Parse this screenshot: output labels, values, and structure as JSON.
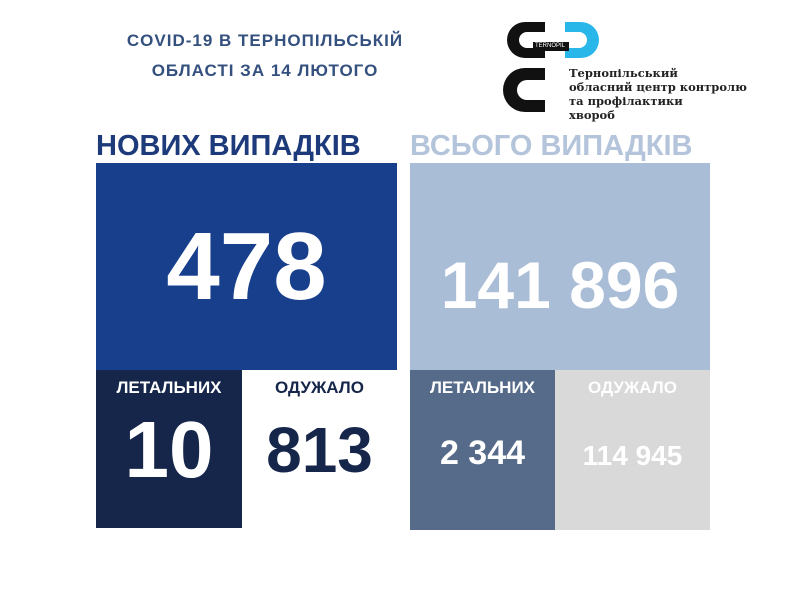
{
  "header": {
    "title_line1": "COVID-19 В ТЕРНОПІЛЬСЬКІЙ",
    "title_line2": "ОБЛАСТІ ЗА 14 ЛЮТОГО"
  },
  "logo": {
    "text": "CDC",
    "badge": "TERNOPIL",
    "org_lines": [
      "Тернопільський",
      "обласний центр контролю",
      "та профілактики",
      "хвороб"
    ]
  },
  "new_cases": {
    "heading": "НОВИХ ВИПАДКІВ",
    "value": "478",
    "deaths_label": "ЛЕТАЛЬНИХ",
    "deaths": "10",
    "recovered_label": "ОДУЖАЛО",
    "recovered": "813"
  },
  "total_cases": {
    "heading": "ВСЬОГО ВИПАДКІВ",
    "value": "141 896",
    "deaths_label": "ЛЕТАЛЬНИХ",
    "deaths": "2 344",
    "recovered_label": "ОДУЖАЛО",
    "recovered": "114 945"
  },
  "colors": {
    "new_blue": "#173f8c",
    "navy": "#15264a",
    "light_blue": "#a9bdd6",
    "slate": "#566a8a",
    "gray": "#d9d9d9"
  }
}
